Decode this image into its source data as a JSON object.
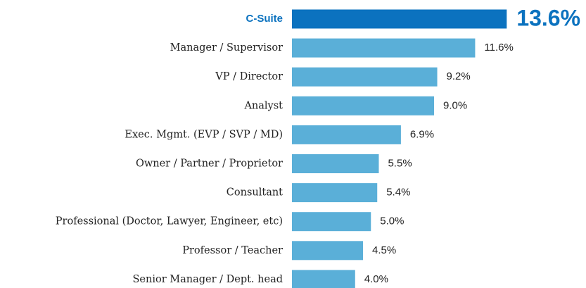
{
  "chart_data": {
    "type": "bar",
    "orientation": "horizontal",
    "categories": [
      "C-Suite",
      "Manager / Supervisor",
      "VP / Director",
      "Analyst",
      "Exec. Mgmt. (EVP / SVP / MD)",
      "Owner / Partner / Proprietor",
      "Consultant",
      "Professional (Doctor, Lawyer, Engineer, etc)",
      "Professor / Teacher",
      "Senior Manager / Dept. head"
    ],
    "values": [
      13.6,
      11.6,
      9.2,
      9.0,
      6.9,
      5.5,
      5.4,
      5.0,
      4.5,
      4.0
    ],
    "value_labels": [
      "13.6%",
      "11.6%",
      "9.2%",
      "9.0%",
      "6.9%",
      "5.5%",
      "5.4%",
      "5.0%",
      "4.5%",
      "4.0%"
    ],
    "color": "#5aafd8",
    "highlight": 0,
    "highlight_color": "#0b72bf"
  }
}
